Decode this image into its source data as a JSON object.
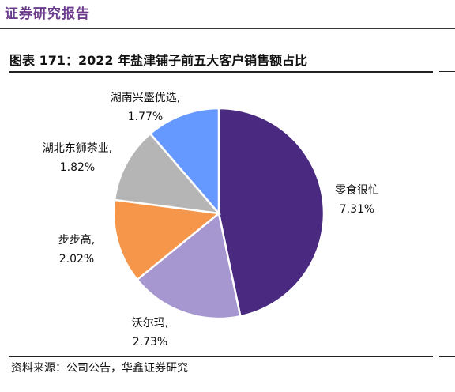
{
  "header": {
    "title": "证券研究报告"
  },
  "figure": {
    "title": "图表 171：2022 年盐津铺子前五大客户销售额占比"
  },
  "source": {
    "text": "资料来源：公司公告，华鑫证券研究"
  },
  "chart_data": {
    "type": "pie",
    "title": "图表 171：2022 年盐津铺子前五大客户销售额占比",
    "unit": "%",
    "slices": [
      {
        "label": "零食很忙",
        "value": 7.31,
        "value_text": "7.31%",
        "color": "#4a2a80"
      },
      {
        "label": "沃尔玛,",
        "value": 2.73,
        "value_text": "2.73%",
        "color": "#a797d0"
      },
      {
        "label": "步步高,",
        "value": 2.02,
        "value_text": "2.02%",
        "color": "#f5964a"
      },
      {
        "label": "湖北东狮茶业,",
        "value": 1.82,
        "value_text": "1.82%",
        "color": "#b5b5b5"
      },
      {
        "label": "湖南兴盛优选,",
        "value": 1.77,
        "value_text": "1.77%",
        "color": "#6699ff"
      }
    ],
    "start": "12 o'clock",
    "direction": "clockwise",
    "legend": "none"
  }
}
